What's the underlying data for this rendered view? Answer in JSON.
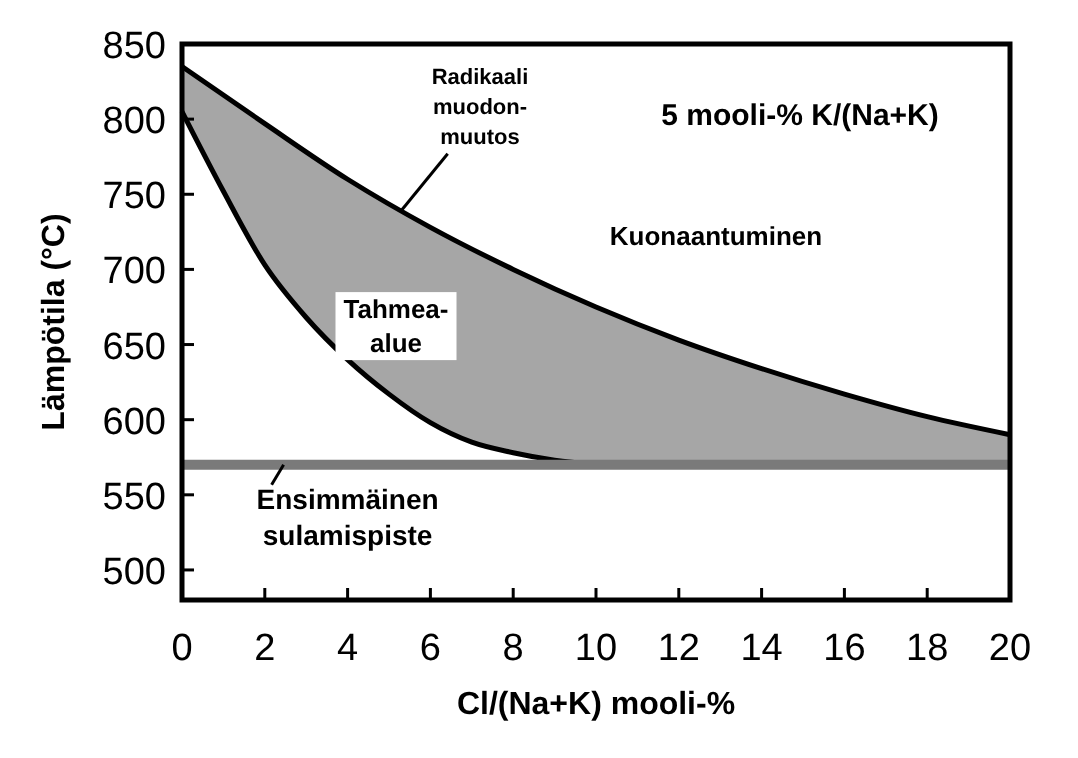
{
  "chart_data": {
    "type": "area",
    "xlabel": "Cl/(Na+K) mooli-%",
    "ylabel": "Lämpötila (°C)",
    "xlim": [
      0,
      20
    ],
    "xticks": [
      0,
      2,
      4,
      6,
      8,
      10,
      12,
      14,
      16,
      18,
      20
    ],
    "ylim": [
      480,
      850
    ],
    "yticks": [
      500,
      550,
      600,
      650,
      700,
      750,
      800,
      850
    ],
    "grid": false,
    "series": [
      {
        "color": "#a6a6a6",
        "x": [
          0,
          2,
          4,
          6,
          8,
          10,
          12,
          14,
          16,
          18,
          20
        ],
        "values": [
          835,
          797,
          760,
          728,
          700,
          675,
          653,
          634,
          617,
          602,
          590
        ]
      },
      {
        "type": "line",
        "color": "#000000",
        "x": [
          0,
          1,
          2,
          3,
          4,
          5,
          6,
          7,
          8,
          9,
          10
        ],
        "values": [
          805,
          752,
          703,
          668,
          640,
          617,
          598,
          585,
          578,
          573,
          570
        ]
      }
    ],
    "ref_lines": [
      {
        "axis": "y",
        "value": 570,
        "label": "Ensimmäinen\nsulamispiste",
        "color": "#7a7a7a"
      }
    ],
    "annotations": [
      "Radikaali\nmuodon-\nmuutos",
      "Tahmea-\nalue",
      "Kuonaantuminen",
      "5 mooli-% K/(Na+K)"
    ]
  }
}
